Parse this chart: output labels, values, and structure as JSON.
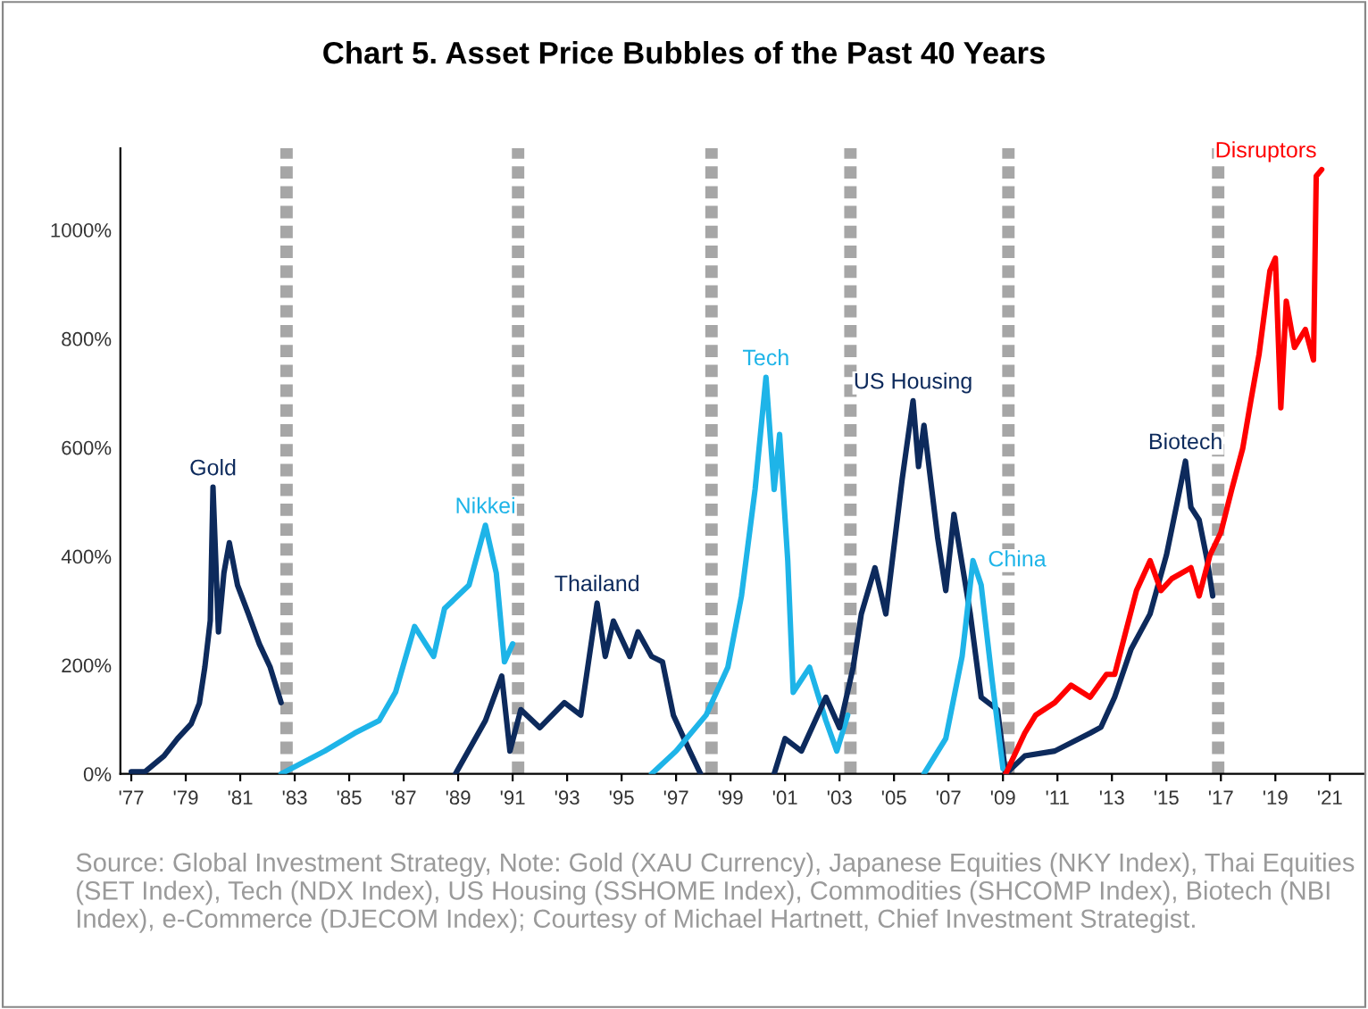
{
  "chart_data": {
    "type": "line",
    "title": "Chart 5. Asset Price Bubbles of the Past 40 Years",
    "xlim": [
      1976.6,
      2022.3
    ],
    "ylim": [
      0,
      1150
    ],
    "xticks": [
      {
        "value": 1977,
        "label": "'77"
      },
      {
        "value": 1979,
        "label": "'79"
      },
      {
        "value": 1981,
        "label": "'81"
      },
      {
        "value": 1983,
        "label": "'83"
      },
      {
        "value": 1985,
        "label": "'85"
      },
      {
        "value": 1987,
        "label": "'87"
      },
      {
        "value": 1989,
        "label": "'89"
      },
      {
        "value": 1991,
        "label": "'91"
      },
      {
        "value": 1993,
        "label": "'93"
      },
      {
        "value": 1995,
        "label": "'95"
      },
      {
        "value": 1997,
        "label": "'97"
      },
      {
        "value": 1999,
        "label": "'99"
      },
      {
        "value": 2001,
        "label": "'01"
      },
      {
        "value": 2003,
        "label": "'03"
      },
      {
        "value": 2005,
        "label": "'05"
      },
      {
        "value": 2007,
        "label": "'07"
      },
      {
        "value": 2009,
        "label": "'09"
      },
      {
        "value": 2011,
        "label": "'11"
      },
      {
        "value": 2013,
        "label": "'13"
      },
      {
        "value": 2015,
        "label": "'15"
      },
      {
        "value": 2017,
        "label": "'17"
      },
      {
        "value": 2019,
        "label": "'19"
      },
      {
        "value": 2021,
        "label": "'21"
      }
    ],
    "yticks": [
      {
        "value": 0,
        "label": "0%"
      },
      {
        "value": 200,
        "label": "200%"
      },
      {
        "value": 400,
        "label": "400%"
      },
      {
        "value": 600,
        "label": "600%"
      },
      {
        "value": 800,
        "label": "800%"
      },
      {
        "value": 1000,
        "label": "1000%"
      }
    ],
    "grid": false,
    "legend": false,
    "line_style": "solid",
    "series": [
      {
        "name": "Gold",
        "color": "#0d2a5c",
        "x": [
          1977.0,
          1977.5,
          1978.2,
          1978.7,
          1979.2,
          1979.5,
          1979.7,
          1979.9,
          1980.0,
          1980.2,
          1980.4,
          1980.6,
          1980.9,
          1981.3,
          1981.7,
          1982.1,
          1982.5
        ],
        "values": [
          4,
          4,
          33,
          65,
          92,
          130,
          196,
          282,
          527,
          261,
          369,
          425,
          347,
          294,
          239,
          196,
          131
        ]
      },
      {
        "name": "Nikkei",
        "color": "#1eb4e8",
        "x": [
          1982.5,
          1984.1,
          1985.2,
          1986.1,
          1986.7,
          1987.4,
          1988.1,
          1988.5,
          1989.4,
          1990.0,
          1990.4,
          1990.7,
          1991.0
        ],
        "values": [
          0,
          42,
          75,
          98,
          150,
          271,
          216,
          304,
          347,
          457,
          369,
          206,
          239
        ]
      },
      {
        "name": "Thailand",
        "color": "#0d2a5c",
        "x": [
          1988.9,
          1990.0,
          1990.6,
          1990.9,
          1991.3,
          1992.0,
          1992.9,
          1993.5,
          1994.1,
          1994.4,
          1994.7,
          1995.3,
          1995.6,
          1996.1,
          1996.5,
          1996.9,
          1997.5,
          1997.9
        ],
        "values": [
          0,
          98,
          180,
          42,
          118,
          85,
          131,
          108,
          314,
          216,
          281,
          216,
          261,
          216,
          206,
          108,
          42,
          0
        ]
      },
      {
        "name": "Tech",
        "color": "#1eb4e8",
        "x": [
          1996.1,
          1997.0,
          1998.1,
          1998.9,
          1999.4,
          1999.9,
          2000.3,
          2000.6,
          2000.8,
          2001.1,
          2001.3,
          2001.9,
          2002.5,
          2002.9,
          2003.3
        ],
        "values": [
          0,
          42,
          108,
          196,
          327,
          523,
          729,
          523,
          624,
          392,
          150,
          196,
          98,
          42,
          108
        ]
      },
      {
        "name": "US Housing",
        "color": "#0d2a5c",
        "x": [
          2000.6,
          2001.0,
          2001.6,
          2002.5,
          2003.0,
          2003.5,
          2003.8,
          2004.3,
          2004.7,
          2005.3,
          2005.7,
          2005.9,
          2006.1,
          2006.6,
          2006.9,
          2007.2,
          2007.8,
          2008.2,
          2008.8,
          2009.1
        ],
        "values": [
          0,
          65,
          42,
          141,
          85,
          196,
          294,
          379,
          294,
          542,
          686,
          565,
          641,
          435,
          337,
          477,
          294,
          141,
          118,
          0
        ]
      },
      {
        "name": "China",
        "color": "#1eb4e8",
        "x": [
          2006.1,
          2006.9,
          2007.5,
          2007.9,
          2008.2,
          2008.6,
          2009.0
        ],
        "values": [
          0,
          65,
          216,
          392,
          347,
          173,
          10
        ]
      },
      {
        "name": "Biotech",
        "color": "#0d2a5c",
        "x": [
          2009.1,
          2009.8,
          2010.9,
          2012.2,
          2012.6,
          2013.1,
          2013.7,
          2014.4,
          2015.0,
          2015.4,
          2015.7,
          2015.9,
          2016.2,
          2016.5,
          2016.7
        ],
        "values": [
          0,
          33,
          42,
          75,
          86,
          141,
          229,
          294,
          402,
          500,
          575,
          490,
          467,
          392,
          327
        ]
      },
      {
        "name": "Disruptors",
        "color": "#ff0000",
        "x": [
          2009.1,
          2009.8,
          2010.2,
          2010.9,
          2011.5,
          2012.2,
          2012.8,
          2013.1,
          2013.9,
          2014.4,
          2014.8,
          2015.2,
          2015.9,
          2016.2,
          2016.6,
          2017.0,
          2017.4,
          2017.8,
          2018.1,
          2018.4,
          2018.8,
          2019.0,
          2019.2,
          2019.4,
          2019.7,
          2020.1,
          2020.4,
          2020.5,
          2020.7
        ],
        "values": [
          0,
          75,
          108,
          131,
          163,
          141,
          183,
          183,
          337,
          392,
          337,
          359,
          379,
          327,
          402,
          444,
          523,
          598,
          686,
          771,
          925,
          948,
          673,
          869,
          784,
          817,
          761,
          1099,
          1111
        ]
      }
    ],
    "ref_lines": [
      {
        "axis": "x",
        "value": 1982.7,
        "color": "#a6a6a6",
        "line_style": "dashed"
      },
      {
        "axis": "x",
        "value": 1991.2,
        "color": "#a6a6a6",
        "line_style": "dashed"
      },
      {
        "axis": "x",
        "value": 1998.3,
        "color": "#a6a6a6",
        "line_style": "dashed"
      },
      {
        "axis": "x",
        "value": 2003.4,
        "color": "#a6a6a6",
        "line_style": "dashed"
      },
      {
        "axis": "x",
        "value": 2009.2,
        "color": "#a6a6a6",
        "line_style": "dashed"
      },
      {
        "axis": "x",
        "value": 2016.9,
        "color": "#a6a6a6",
        "line_style": "dashed"
      }
    ],
    "annotations": [
      "Source: Global Investment Strategy, Note: Gold (XAU Currency), Japanese Equities (NKY Index), Thai Equities (SET Index), Tech (NDX Index), US Housing (SSHOME Index), Commodities (SHCOMP Index), Biotech (NBI Index), e-Commerce (DJECOM Index); Courtesy of Michael Hartnett, Chief Investment Strategist."
    ]
  }
}
